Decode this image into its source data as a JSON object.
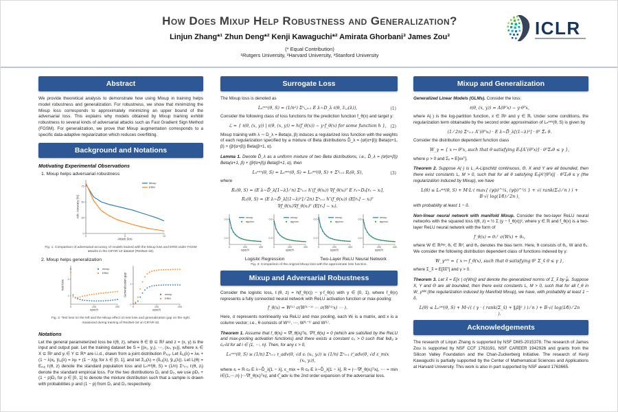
{
  "header": {
    "title": "How Does Mixup Help Robustness and Generalization?",
    "authors": "Linjun Zhang*¹   Zhun Deng*²   Kenji Kawaguchi*²   Amirata Ghorbani³   James Zou³",
    "equal_contribution": "(* Equal Contribution)",
    "affiliations": "¹Rutgers University, ²Harvard University, ³Stanford University",
    "logo_text": "ICLR"
  },
  "colors": {
    "header_bar": "#2e5795",
    "logo_navy": "#16355c",
    "mixup_blue": "#1f77b4",
    "erm_orange": "#ff7f0e",
    "approx_green": "#2ca02c"
  },
  "left": {
    "abstract_header": "Abstract",
    "abstract_text": "We provide theoretical analysis to demonstrate how using Mixup in training helps model robustness and generalization. For robustness, we show that minimizing the Mixup loss corresponds to approximately minimizing an upper bound of the adversarial loss. This explains why models obtained by Mixup training exhibit robustness to several kinds of adversarial attacks such as Fast Gradient Sign Method (FGSM). For generalization, we prove that Mixup augmentation corresponds to a specific data-adaptive regularization which reduces overfitting.",
    "background_header": "Background and Notations",
    "motivating_heading": "Motivating Experimental Observations",
    "obs1": "1.  Mixup helps adversarial robustness",
    "fig1_caption": "Fig. 1: Comparison of adversarial accuracy of models trained with the Mixup loss and ERM under FGSM attacks in the CIFAR-10 dataset (ResNet-18).",
    "obs2": "2. Mixup helps generalization",
    "fig2_caption": "Fig. 2: Test loss on the left and the Mixup effect on test loss and generalization gap on the right, measured during training of ResNet-18 on CIFAR-10.",
    "notations_heading": "Notations",
    "notations_text": "Let the general parameterized loss be ℓ(θ, z), where θ ∈ Θ ⊆ ℝᵈ and z = (x, y) is the input and output pair. Let the training dataset be S = {(x₁, y₁), ⋯, (xₙ, yₙ)}, where xᵢ ∈ X ⊆ ℝᵖ and yᵢ ∈ Y ⊆ ℝᵐ are i.i.d., drawn from a joint distribution Pₓ,ᵧ. Let x̃ᵢ,ⱼ(λ) = λxᵢ + (1 − λ)xⱼ,  ỹᵢ,ⱼ(λ) = λyᵢ + (1 − λ)yⱼ for λ ∈ [0, 1], and let z̃ᵢ,ⱼ(λ) = (x̃ᵢ,ⱼ(λ), ỹᵢ,ⱼ(λ)). Let L(θ) = Eₓ,ᵧ ℓ(θ, z) denote the standard population loss and Lₙˢᵗᵈ(θ, S) = (1/n) Σⁿᵢ₌₁ ℓ(θ, zᵢ) denote the standard empirical loss. For the two distributions D₁ and D₂, we use pD₁ + (1 − p)D₂ for p ∈ [0, 1] to denote the mixture distribution such that a sample is drawn with probabilities p and (1 − p) from D₁ and D₂ respectively."
  },
  "middle": {
    "surrogate_header": "Surrogate Loss",
    "p1": "The Mixup loss is denoted as",
    "eq1": "Lₙᵐⁱˣ(θ, S) = (1/n²) Σⁿᵢ,ⱼ₌₁ E λ∼D_λ ℓ(θ, z̃ᵢ,ⱼ(λ)),",
    "eq1_num": "(1)",
    "p2": "Consider the following class of loss functions for the prediction function f_θ(x) and target y:",
    "eq2": "ℒ = { ℓ(θ, (x, y)) | ℓ(θ, (x, y)) = h(f_θ(x)) − y·f_θ(x)  for some function h },",
    "eq2_num": "(2)",
    "p3": "Mixup training with λ ∼ D_λ = Beta(α, β) induces a regularized loss function with the weights of each regularization specified by a mixture of Beta distributions D̃_λ = (α⁄(α+β)) Beta(α+1, β) + (β⁄(α+β)) Beta(β+1, α).",
    "lemma1_label": "Lemma 1.",
    "lemma1_text": "Denote D̃_λ as a uniform mixture of two Beta distributions, i.e., D̃_λ = (α⁄(α+β)) Beta(α+1, β) + (β⁄(α+β)) Beta(β+1, α), then",
    "eq3": "Lₙᵐⁱˣ(θ, S) ≈ Lₙᵃᵖˣ(θ, S) = Lₙˢᵗᵈ(θ, S) + Σ³ᵢ₌₁ Rᵢ(θ, S),",
    "eq3_num": "(3)",
    "where_label": "where",
    "eqR1": "R₁(θ, S) = (E λ∼D̃_λ[1−λ] ⁄ n) Σⁿᵢ₌₁ h′(f_θ(xᵢ)) ∇f_θ(xᵢ)ᵀ E rₓ∼Dₓ[rₓ − xᵢ],",
    "eqR2": "R₂(θ, S) = (E λ∼D̃_λ[(1−λ)²] ⁄ 2n) Σⁿᵢ₌₁ h″(f_θ(xᵢ)) (E[rₓ] − xᵢ)ᵀ ∇f_θ(xᵢ)∇f_θ(xᵢ)ᵀ (E[rₓ] − xᵢ).",
    "fig3_label1": "Logistic Regression",
    "fig3_label2": "Two-Layer ReLU Neural Network",
    "fig3_caption": "Fig. 3: Comparison of the original Mixup loss with the approximate loss function.",
    "adv_header": "Mixup and Adversarial Robustness",
    "adv_p1": "Consider the logistic loss, ℓ(θ, z) = h(f_θ(x)) − y·f_θ(x) with y ∈ {0, 1}, where f_θ(x) represents a fully connected neural network with ReLU activation function or max-pooling:",
    "adv_eq1": "f_θ(x) = W⁽ᴸ⁾ σ(W⁽ᴸ⁻¹⁾ ⋯ σ(W⁽¹⁾x) ⋯ ).",
    "adv_p2": "Here, σ represents nonlinearity via ReLU and max pooling, each Wᵢ is a matrix, and x is a column vector; i.e., θ consists of W⁽¹⁾, ⋯, W⁽ᴸ⁻¹⁾ and W⁽ᴸ⁾.",
    "thm1_label": "Theorem 1.",
    "thm1_text": "Assume that f_θ(xᵢ) = ∇f_θ(xᵢ)ᵀxᵢ, ∇²f_θ(xᵢ) = 0 (which are satisfied by the ReLU and max-pooling activation functions) and there exists a constant cₓ > 0 such that ‖xᵢ‖₂ ≥ cₓ√d for all i ∈ {1, ⋯, n}. Then, for any ε > 0,",
    "thm1_eq": "Lₙᵐⁱˣ(θ, S) ≥ (1/n) Σⁿᵢ₌₁ ℓ_adv(θ, √d εᵢ (xᵢ, yᵢ)) ≥ (1/n) Σⁿᵢ₌₁ ℓ̃_adv(θ, √d ε_mix (xᵢ, yᵢ)),",
    "thm1_where": "where εᵢ = R·cₓ·E λ∼D̃_λ[1 − λ],  ε_mix = R·cₓ·E λ∼D̃_λ[1 − λ],  R = |⋯∇f_θ(xᵢ)ᵀxᵢ|, ⋯ = min i∈{1,⋯,n} |⋯∇f_θ(xᵢ)ᵀxᵢ|, and ℓ̃_adv is the 2nd order expansion of the adversarial loss."
  },
  "right": {
    "gen_header": "Mixup and Generalization",
    "glm_heading": "Generalized Linear Models (GLMs).",
    "glm_intro": "Consider the loss:",
    "glm_eq": "ℓ(θ, (x, y)) = A(θᵀx) − y·θᵀx,",
    "glm_p2": "where A(·) is the log-partition function, x ∈ ℝᵖ and y ∈ ℝ. Under some conditions, the regularization term obtainable by the second order approximation of Lₙᵐⁱˣ(θ, S) is given by",
    "glm_eq2": "(1 ⁄ 2n) Σⁿᵢ₌₁ A″(θᵀxᵢ) · E λ∼D̃_λ[(1−λ)²] · θᵀ Σ̂ₓ θ.",
    "fc_intro": "Consider the distribution dependent function class",
    "fc_eq": "W_γ = { x ↦ θᵀx,  such that θ satisfying Eₓ[A″(θᵀx)] · θᵀΣₓθ ≤ γ },",
    "fc_where": "where ρ > 0 and Σₓ = E[xxᵀ].",
    "thm2_label": "Theorem 2.",
    "thm2_text": "Suppose A(·) is L_A-Lipschitz continuous, Θ, X and Y are all bounded, then there exist constants L, M > 0, such that for all θ satisfying Eₓ[A″(θᵀx)] · θᵀΣₓθ ≤ γ (the regularization induced by Mixup), we have",
    "thm2_eq": "L(θ) ≤ Lₙˢᵗᵈ(θ, S) + M·L·( max{ (γ⁄ρ)^¼, (γ⁄ρ)^½ } + √( rank(Σₓ) ⁄ n ) ) + B·√( log(1⁄δ) ⁄ 2n ),",
    "thm2_tail": "with probability at least 1 − δ.",
    "nn_heading": "Non-linear neural network with manifold Mixup.",
    "nn_p1": "Consider the two-layer ReLU neural networks with the squared loss ℓ(θ, z) = ½ Σ (y − f_θ(x))², where y ∈ ℝ and f_θ(x) is a two-layer ReLU neural network with the form of",
    "nn_eq1": "f_θ(x) = θ₁ᵀ σ(Wx) + θ₀,",
    "nn_p2": "where W ∈ ℝᵈˣᵖ, θ₁ ∈ ℝᵈ, and θ₀ denotes the bias term. Here, θ consists of θ₁, W and θ₀. We consider the following distribution dependent class of functions indexed by γ:",
    "nn_eq2": "W_γᴺᴺ = { x ↦ f_θ(x),  such that θ satisfying θᵀ Σ_x̃ θ ≤ γ },",
    "nn_where": "where Σ_x̃ = E[x̃x̃ᵀ] and γ > 0.",
    "thm3_label": "Theorem 3.",
    "thm3_text": "Let x̃ = E[x | σ(Wx)] and denote the generalized norms of Σ_x̃ by μ̃ᵢ. Suppose X, Y and Θ are all bounded, then there exist constants L, M > 0, such that for all f_θ in W_γᴺᴺ (the regularization induced by Manifold Mixup), we have, with probability at least 1 − δ,",
    "thm3_eq": "L(θ) ≤ Lₙˢᵗᵈ(θ, S) + M·√( ( γ · ( rank(Σ_x̃) + ‖μ̃‖² ) ) ⁄ n ) + B·√( log(1⁄δ) ⁄ 2n ).",
    "ack_header": "Acknowledgements",
    "ack_text": "The research of Linjun Zhang is supported by NSF DMS-2015378. The research of James Zou is supported by NSF CCF 1763191, NSF CAREER 1942926 and grants from the Silicon Valley Foundation and the Chan-Zuckerberg Initiative. The research of Kenji Kawaguchi is partially supported by the Center of Mathematical Sciences and Applications at Harvard University. This work is also in part supported by NSF award 1763665."
  },
  "chart_data": [
    {
      "id": "fig1",
      "type": "line",
      "xlabel": "Attack Size",
      "ylabel": "Adv. Accuracy (%)",
      "x": [
        0,
        1,
        2,
        3,
        4,
        5,
        6,
        7,
        8,
        9,
        10
      ],
      "xticks": [
        0,
        5,
        10
      ],
      "yticks": [
        0,
        25,
        50,
        75
      ],
      "ylim": [
        0,
        85
      ],
      "legend_position": "ne",
      "series": [
        {
          "name": "Mixup",
          "color": "#1f77b4",
          "style": "line",
          "values": [
            78,
            58,
            50,
            46,
            43,
            40,
            37,
            33,
            29,
            25,
            20
          ]
        },
        {
          "name": "ERM",
          "color": "#ff7f0e",
          "style": "line",
          "values": [
            80,
            52,
            36,
            28,
            22,
            18,
            14,
            11,
            8,
            6,
            4
          ]
        }
      ]
    },
    {
      "id": "fig2a",
      "type": "scatter",
      "xlabel": "epoch",
      "ylabel": "test loss",
      "x": [
        0,
        10,
        20,
        30,
        40,
        50,
        60,
        70,
        80,
        90,
        100,
        110,
        120,
        130,
        140,
        150,
        160,
        170,
        180,
        190,
        200
      ],
      "xticks": [
        0,
        100,
        200
      ],
      "yticks": [
        1,
        2
      ],
      "ylim": [
        0.5,
        2.8
      ],
      "legend_position": "ne",
      "series": [
        {
          "name": "mixup",
          "color": "#1f77b4",
          "style": "dots",
          "values": [
            2.6,
            1.05,
            0.9,
            0.82,
            0.78,
            0.75,
            0.73,
            0.72,
            0.71,
            0.7,
            0.7,
            0.69,
            0.69,
            0.7,
            0.7,
            0.71,
            0.72,
            0.73,
            0.74,
            0.76,
            0.78
          ]
        },
        {
          "name": "ERM",
          "color": "#ff7f0e",
          "style": "dots",
          "values": [
            2.4,
            0.95,
            0.88,
            0.9,
            0.93,
            0.97,
            1.0,
            1.03,
            1.06,
            1.08,
            1.1,
            1.12,
            1.14,
            1.16,
            1.17,
            1.19,
            1.2,
            1.22,
            1.23,
            1.25,
            1.26
          ]
        }
      ]
    },
    {
      "id": "fig2b",
      "type": "scatter",
      "xlabel": "epoch",
      "ylabel": "Generalization gap",
      "x": [
        0,
        10,
        20,
        30,
        40,
        50,
        60,
        70,
        80,
        90,
        100,
        110,
        120,
        130,
        140,
        150,
        160,
        170,
        180,
        190,
        200
      ],
      "xticks": [
        0,
        100,
        200
      ],
      "yticks": [
        0,
        1
      ],
      "ylim": [
        0,
        1.9
      ],
      "legend_position": "se",
      "series": [
        {
          "name": "mixup",
          "color": "#1f77b4",
          "style": "dots",
          "values": [
            0.02,
            0.05,
            0.15,
            0.35,
            0.55,
            0.7,
            0.8,
            0.86,
            0.9,
            0.92,
            0.93,
            0.94,
            0.94,
            0.95,
            0.95,
            0.95,
            0.95,
            0.95,
            0.95,
            0.95,
            0.95
          ]
        },
        {
          "name": "ERM",
          "color": "#ff7f0e",
          "style": "dots",
          "values": [
            0.02,
            0.1,
            0.35,
            0.75,
            1.1,
            1.35,
            1.5,
            1.58,
            1.63,
            1.66,
            1.68,
            1.69,
            1.7,
            1.7,
            1.71,
            1.71,
            1.71,
            1.72,
            1.72,
            1.72,
            1.72
          ]
        }
      ]
    },
    {
      "id": "fig3a",
      "type": "line",
      "xlabel": "epoch",
      "ylabel": "",
      "x": [
        0,
        25,
        50,
        75,
        100,
        125,
        150,
        175,
        200,
        225,
        250,
        275,
        300,
        325,
        350,
        375,
        400
      ],
      "xticks": [
        0,
        200,
        400
      ],
      "yticks": [
        0.3,
        0.6
      ],
      "ylim": [
        0.2,
        0.68
      ],
      "legend_position": "ne",
      "series": [
        {
          "name": "mixup",
          "color": "#1f77b4",
          "style": "line",
          "values": [
            0.62,
            0.47,
            0.4,
            0.36,
            0.33,
            0.31,
            0.295,
            0.285,
            0.275,
            0.27,
            0.265,
            0.26,
            0.258,
            0.255,
            0.252,
            0.25,
            0.248
          ]
        },
        {
          "name": "approx",
          "color": "#2ca02c",
          "style": "dots",
          "values": [
            0.6,
            0.46,
            0.395,
            0.355,
            0.328,
            0.308,
            0.292,
            0.282,
            0.273,
            0.268,
            0.263,
            0.259,
            0.256,
            0.253,
            0.25,
            0.249,
            0.247
          ]
        }
      ]
    },
    {
      "id": "fig3b",
      "type": "line",
      "xlabel": "epoch",
      "ylabel": "",
      "x": [
        0,
        25,
        50,
        75,
        100,
        125,
        150,
        175,
        200,
        225,
        250,
        275,
        300,
        325,
        350,
        375,
        400
      ],
      "xticks": [
        0,
        200,
        400
      ],
      "yticks": [
        0.3,
        0.6
      ],
      "ylim": [
        0.2,
        0.68
      ],
      "legend_position": "ne",
      "series": [
        {
          "name": "mixup",
          "color": "#1f77b4",
          "style": "line",
          "values": [
            0.58,
            0.45,
            0.39,
            0.35,
            0.325,
            0.305,
            0.29,
            0.28,
            0.272,
            0.266,
            0.261,
            0.257,
            0.254,
            0.251,
            0.249,
            0.247,
            0.246
          ]
        },
        {
          "name": "approx",
          "color": "#2ca02c",
          "style": "dots",
          "values": [
            0.57,
            0.445,
            0.387,
            0.347,
            0.322,
            0.303,
            0.288,
            0.278,
            0.27,
            0.264,
            0.259,
            0.256,
            0.253,
            0.25,
            0.248,
            0.246,
            0.245
          ]
        }
      ]
    },
    {
      "id": "fig3c",
      "type": "line",
      "xlabel": "epoch",
      "ylabel": "",
      "x": [
        0,
        25,
        50,
        75,
        100,
        125,
        150,
        175,
        200,
        225,
        250,
        275,
        300,
        325,
        350,
        375,
        400
      ],
      "xticks": [
        0,
        200,
        400
      ],
      "yticks": [
        0.3,
        0.6
      ],
      "ylim": [
        0.2,
        0.68
      ],
      "legend_position": "ne",
      "series": [
        {
          "name": "mixup",
          "color": "#1f77b4",
          "style": "line",
          "values": [
            0.64,
            0.49,
            0.42,
            0.37,
            0.34,
            0.315,
            0.3,
            0.29,
            0.28,
            0.273,
            0.268,
            0.263,
            0.26,
            0.257,
            0.254,
            0.252,
            0.25
          ]
        },
        {
          "name": "approx",
          "color": "#2ca02c",
          "style": "dots",
          "values": [
            0.62,
            0.48,
            0.41,
            0.365,
            0.335,
            0.312,
            0.297,
            0.287,
            0.278,
            0.271,
            0.266,
            0.262,
            0.258,
            0.255,
            0.253,
            0.251,
            0.249
          ]
        }
      ]
    },
    {
      "id": "fig3d",
      "type": "line",
      "xlabel": "epoch",
      "ylabel": "",
      "x": [
        0,
        25,
        50,
        75,
        100,
        125,
        150,
        175,
        200,
        225,
        250,
        275,
        300,
        325,
        350,
        375,
        400
      ],
      "xticks": [
        0,
        200,
        400
      ],
      "yticks": [
        0.3,
        0.6
      ],
      "ylim": [
        0.2,
        0.68
      ],
      "legend_position": "ne",
      "series": [
        {
          "name": "mixup",
          "color": "#1f77b4",
          "style": "line",
          "values": [
            0.6,
            0.46,
            0.4,
            0.355,
            0.33,
            0.308,
            0.293,
            0.283,
            0.274,
            0.268,
            0.263,
            0.259,
            0.255,
            0.252,
            0.25,
            0.248,
            0.246
          ]
        },
        {
          "name": "approx",
          "color": "#2ca02c",
          "style": "dots",
          "values": [
            0.59,
            0.455,
            0.395,
            0.351,
            0.326,
            0.305,
            0.29,
            0.28,
            0.272,
            0.266,
            0.261,
            0.257,
            0.254,
            0.251,
            0.249,
            0.247,
            0.245
          ]
        }
      ]
    }
  ]
}
